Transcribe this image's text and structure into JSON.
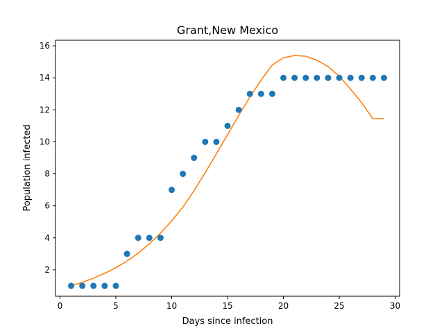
{
  "chart_data": {
    "type": "scatter",
    "title": "Grant,New Mexico",
    "xlabel": "Days since infection",
    "ylabel": "Population infected",
    "xlim": [
      -0.4,
      30.4
    ],
    "ylim": [
      0.35,
      16.35
    ],
    "xticks": [
      0,
      5,
      10,
      15,
      20,
      25,
      30
    ],
    "yticks": [
      2,
      4,
      6,
      8,
      10,
      12,
      14,
      16
    ],
    "grid": false,
    "series": [
      {
        "kind": "scatter",
        "color": "#1f77b4",
        "x": [
          1,
          2,
          3,
          4,
          5,
          6,
          7,
          8,
          9,
          10,
          11,
          12,
          13,
          14,
          15,
          16,
          17,
          18,
          19,
          20,
          21,
          22,
          23,
          24,
          25,
          26,
          27,
          28,
          29
        ],
        "y": [
          1,
          1,
          1,
          1,
          1,
          3,
          4,
          4,
          4,
          7,
          8,
          9,
          10,
          10,
          11,
          12,
          13,
          13,
          13,
          14,
          14,
          14,
          14,
          14,
          14,
          14,
          14,
          14,
          14
        ]
      },
      {
        "kind": "line",
        "color": "#ff7f0e",
        "x": [
          1,
          2,
          3,
          4,
          5,
          6,
          7,
          8,
          9,
          10,
          11,
          12,
          13,
          14,
          15,
          16,
          17,
          18,
          19,
          20,
          21,
          22,
          23,
          24,
          25,
          26,
          27,
          28,
          29
        ],
        "y": [
          1.0,
          1.22,
          1.48,
          1.78,
          2.13,
          2.55,
          3.04,
          3.62,
          4.3,
          5.06,
          5.92,
          6.95,
          8.07,
          9.25,
          10.45,
          11.65,
          12.8,
          13.85,
          14.8,
          15.25,
          15.4,
          15.35,
          15.1,
          14.7,
          14.1,
          13.3,
          12.45,
          11.45,
          11.45
        ]
      }
    ]
  }
}
